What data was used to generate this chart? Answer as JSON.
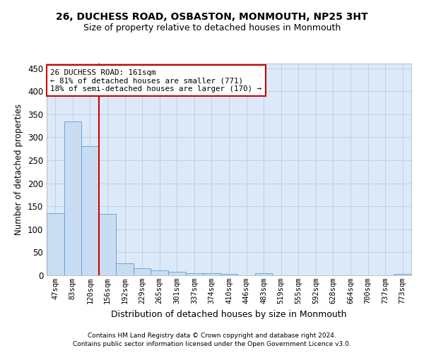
{
  "title": "26, DUCHESS ROAD, OSBASTON, MONMOUTH, NP25 3HT",
  "subtitle": "Size of property relative to detached houses in Monmouth",
  "xlabel": "Distribution of detached houses by size in Monmouth",
  "ylabel": "Number of detached properties",
  "categories": [
    "47sqm",
    "83sqm",
    "120sqm",
    "156sqm",
    "192sqm",
    "229sqm",
    "265sqm",
    "301sqm",
    "337sqm",
    "374sqm",
    "410sqm",
    "446sqm",
    "483sqm",
    "519sqm",
    "555sqm",
    "592sqm",
    "628sqm",
    "664sqm",
    "700sqm",
    "737sqm",
    "773sqm"
  ],
  "values": [
    135,
    335,
    281,
    133,
    26,
    15,
    11,
    7,
    5,
    4,
    3,
    0,
    4,
    0,
    0,
    0,
    0,
    0,
    0,
    0,
    3
  ],
  "bar_color": "#c9ddf2",
  "bar_edge_color": "#5b9bd5",
  "vline_x": 2.5,
  "annotation_line1": "26 DUCHESS ROAD: 161sqm",
  "annotation_line2": "← 81% of detached houses are smaller (771)",
  "annotation_line3": "18% of semi-detached houses are larger (170) →",
  "vline_color": "#cc0000",
  "annotation_box_color": "#cc0000",
  "background_color": "#ffffff",
  "plot_bg_color": "#dce9f8",
  "grid_color": "#b8cde8",
  "ylim": [
    0,
    460
  ],
  "yticks": [
    0,
    50,
    100,
    150,
    200,
    250,
    300,
    350,
    400,
    450
  ],
  "footer_line1": "Contains HM Land Registry data © Crown copyright and database right 2024.",
  "footer_line2": "Contains public sector information licensed under the Open Government Licence v3.0."
}
